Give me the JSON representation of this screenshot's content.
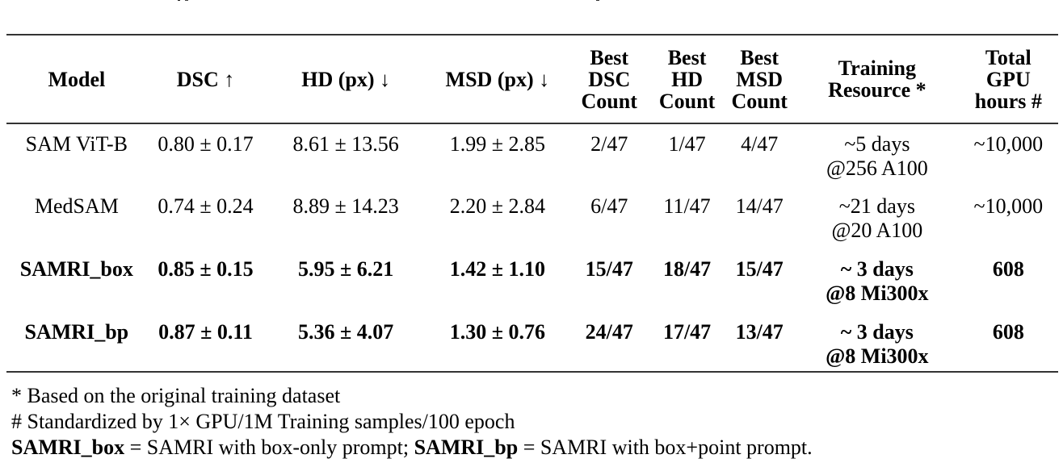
{
  "table": {
    "headers": [
      {
        "label": "Model"
      },
      {
        "label": "DSC ↑"
      },
      {
        "label": "HD (px) ↓"
      },
      {
        "label": "MSD (px) ↓"
      },
      {
        "label": "Best DSC Count",
        "lines": [
          "Best",
          "DSC",
          "Count"
        ]
      },
      {
        "label": "Best HD Count",
        "lines": [
          "Best",
          "HD",
          "Count"
        ]
      },
      {
        "label": "Best MSD Count",
        "lines": [
          "Best",
          "MSD",
          "Count"
        ]
      },
      {
        "label": "Training Resource *",
        "lines": [
          "Training",
          "Resource *"
        ]
      },
      {
        "label": "Total GPU hours #",
        "lines": [
          "Total",
          "GPU",
          "hours #"
        ]
      }
    ],
    "rows": [
      {
        "model": "SAM ViT-B",
        "dsc": "0.80 ± 0.17",
        "hd": "8.61 ± 13.56",
        "msd": "1.99 ± 2.85",
        "best_dsc": "2/47",
        "best_hd": "1/47",
        "best_msd": "4/47",
        "resource_line1": "~5 days",
        "resource_line2": "@256 A100",
        "gpu_hours": "~10,000",
        "bold": false
      },
      {
        "model": "MedSAM",
        "dsc": "0.74 ± 0.24",
        "hd": "8.89 ± 14.23",
        "msd": "2.20 ± 2.84",
        "best_dsc": "6/47",
        "best_hd": "11/47",
        "best_msd": "14/47",
        "resource_line1": "~21 days",
        "resource_line2": "@20 A100",
        "gpu_hours": "~10,000",
        "bold": false
      },
      {
        "model": "SAMRI_box",
        "dsc": "0.85 ± 0.15",
        "hd": "5.95 ± 6.21",
        "msd": "1.42 ± 1.10",
        "best_dsc": "15/47",
        "best_hd": "18/47",
        "best_msd": "15/47",
        "resource_line1": "~ 3 days",
        "resource_line2": "@8 Mi300x",
        "gpu_hours": "608",
        "bold": true
      },
      {
        "model": "SAMRI_bp",
        "dsc": "0.87 ± 0.11",
        "hd": "5.36 ± 4.07",
        "msd": "1.30 ± 0.76",
        "best_dsc": "24/47",
        "best_hd": "17/47",
        "best_msd": "13/47",
        "resource_line1": "~ 3 days",
        "resource_line2": "@8 Mi300x",
        "gpu_hours": "608",
        "bold": true
      }
    ]
  },
  "notes": {
    "note1": "* Based on the original training dataset",
    "note2": "# Standardized by 1× GPU/1M Training samples/100 epoch",
    "note3": {
      "term1": "SAMRI_box",
      "def1": " = SAMRI with box-only prompt; ",
      "term2": "SAMRI_bp",
      "def2": " = SAMRI with box+point prompt."
    }
  }
}
